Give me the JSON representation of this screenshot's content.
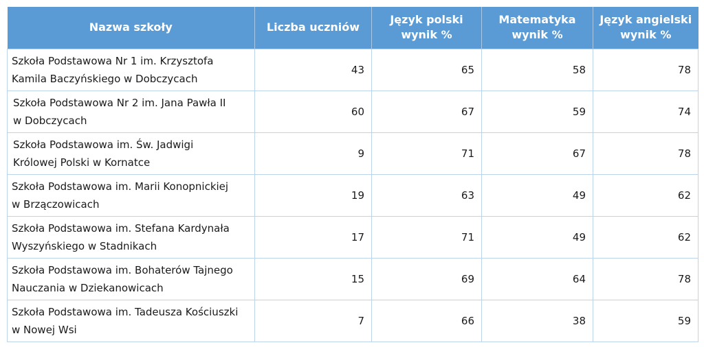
{
  "table": {
    "headers": {
      "name": [
        "Nazwa szkoły"
      ],
      "students": [
        "Liczba uczniów"
      ],
      "polish": [
        "Język polski",
        "wynik %"
      ],
      "math": [
        "Matematyka",
        "wynik %"
      ],
      "english": [
        "Język angielski",
        "wynik %"
      ]
    },
    "rows": [
      {
        "name": [
          "Szkoła Podstawowa Nr 1 im. Krzysztofa",
          "Kamila Baczyńskiego w Dobczycach"
        ],
        "students": "43",
        "polish": "65",
        "math": "58",
        "english": "78"
      },
      {
        "name": [
          "Szkoła Podstawowa Nr 2 im. Jana Pawła II",
          "w Dobczycach"
        ],
        "students": "60",
        "polish": "67",
        "math": "59",
        "english": "74"
      },
      {
        "name": [
          "Szkoła Podstawowa im. Św. Jadwigi",
          "Królowej Polski w Kornatce"
        ],
        "students": "9",
        "polish": "71",
        "math": "67",
        "english": "78"
      },
      {
        "name": [
          "Szkoła Podstawowa im. Marii Konopnickiej",
          "w Brzączowicach"
        ],
        "students": "19",
        "polish": "63",
        "math": "49",
        "english": "62"
      },
      {
        "name": [
          "Szkoła Podstawowa im. Stefana Kardynała",
          "Wyszyńskiego w Stadnikach"
        ],
        "students": "17",
        "polish": "71",
        "math": "49",
        "english": "62"
      },
      {
        "name": [
          "Szkoła Podstawowa im. Bohaterów Tajnego",
          "Nauczania w Dziekanowicach"
        ],
        "students": "15",
        "polish": "69",
        "math": "64",
        "english": "78"
      },
      {
        "name": [
          "Szkoła Podstawowa im. Tadeusza Kościuszki",
          "w Nowej Wsi"
        ],
        "students": "7",
        "polish": "66",
        "math": "38",
        "english": "59"
      }
    ]
  }
}
